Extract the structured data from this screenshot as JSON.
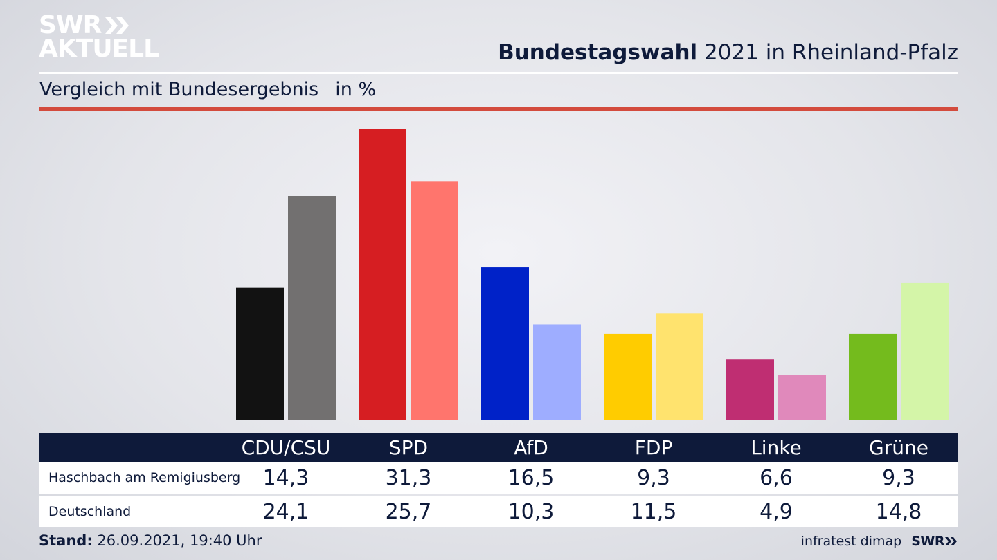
{
  "logo": {
    "line1": "SWR",
    "line2": "AKTUELL"
  },
  "title": {
    "bold": "Bundestagswahl",
    "rest": " 2021 in Rheinland-Pfalz"
  },
  "subtitle": {
    "text": "Vergleich mit Bundesergebnis",
    "unit": "in %"
  },
  "colors": {
    "primary": [
      "#121212",
      "#d61e22",
      "#0022c8",
      "#ffcc00",
      "#bf2e72",
      "#74bb1d"
    ],
    "secondary": [
      "#727070",
      "#ff756d",
      "#9eadff",
      "#ffe36e",
      "#e089bb",
      "#d4f5a8"
    ],
    "red_rule": "#d34b3d",
    "navy": "#0e1a3a"
  },
  "chart_data": {
    "type": "bar",
    "title": "Bundestagswahl 2021 in Rheinland-Pfalz",
    "subtitle": "Vergleich mit Bundesergebnis",
    "unit": "in %",
    "categories": [
      "CDU/CSU",
      "SPD",
      "AfD",
      "FDP",
      "Linke",
      "Grüne"
    ],
    "series": [
      {
        "name": "Haschbach am Remigiusberg",
        "values": [
          14.3,
          31.3,
          16.5,
          9.3,
          6.6,
          9.3
        ]
      },
      {
        "name": "Deutschland",
        "values": [
          24.1,
          25.7,
          10.3,
          11.5,
          4.9,
          14.8
        ]
      }
    ],
    "ylim": [
      0,
      31.3
    ]
  },
  "table": {
    "headers": [
      "CDU/CSU",
      "SPD",
      "AfD",
      "FDP",
      "Linke",
      "Grüne"
    ],
    "rows": [
      {
        "label": "Haschbach am Remigiusberg",
        "values": [
          "14,3",
          "31,3",
          "16,5",
          "9,3",
          "6,6",
          "9,3"
        ]
      },
      {
        "label": "Deutschland",
        "values": [
          "24,1",
          "25,7",
          "10,3",
          "11,5",
          "4,9",
          "14,8"
        ]
      }
    ]
  },
  "footer": {
    "stand_label": "Stand:",
    "stand_value": " 26.09.2021, 19:40 Uhr",
    "source": "infratest dimap",
    "brand": "SWR"
  }
}
